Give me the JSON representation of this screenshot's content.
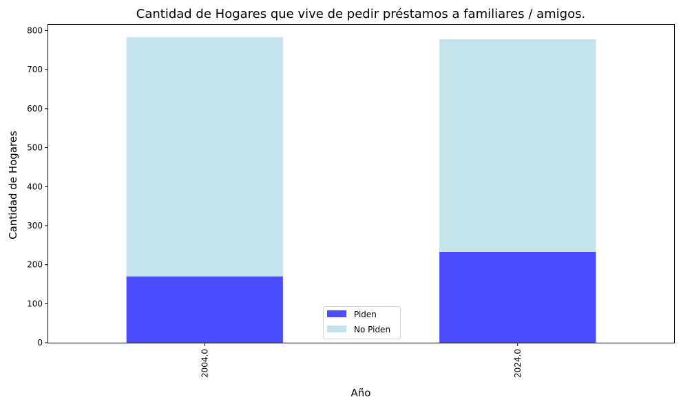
{
  "chart_data": {
    "type": "bar",
    "stacked": true,
    "title": "Cantidad de Hogares que vive de pedir préstamos a familiares / amigos.",
    "xlabel": "Año",
    "ylabel": "Cantidad de Hogares",
    "categories": [
      "2004.0",
      "2024.0"
    ],
    "series": [
      {
        "name": "Piden",
        "values": [
          170,
          233
        ],
        "color": "#4b4bff"
      },
      {
        "name": "No Piden",
        "values": [
          613,
          545
        ],
        "color": "#c5e3ec"
      }
    ],
    "ylim": [
      0,
      815
    ],
    "yticks": [
      0,
      100,
      200,
      300,
      400,
      500,
      600,
      700,
      800
    ],
    "grid": false,
    "legend_position": "bottom-center"
  }
}
